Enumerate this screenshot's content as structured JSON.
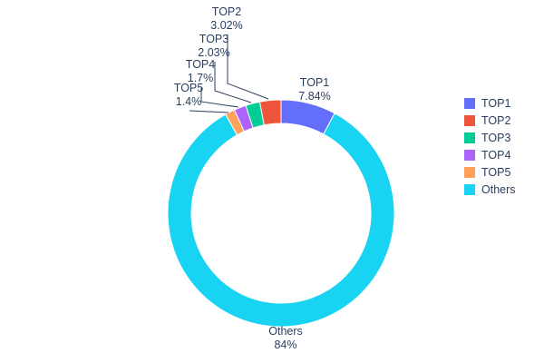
{
  "chart_data": {
    "type": "pie",
    "subtype": "donut",
    "hole_ratio": 0.79,
    "title": "",
    "total": 100,
    "slices": [
      {
        "label": "TOP1",
        "value": 7.84,
        "pct_label": "7.84%",
        "color": "#636efa"
      },
      {
        "label": "TOP2",
        "value": 3.02,
        "pct_label": "3.02%",
        "color": "#ef553b"
      },
      {
        "label": "TOP3",
        "value": 2.03,
        "pct_label": "2.03%",
        "color": "#00cc96"
      },
      {
        "label": "TOP4",
        "value": 1.7,
        "pct_label": "1.7%",
        "color": "#ab63fa"
      },
      {
        "label": "TOP5",
        "value": 1.4,
        "pct_label": "1.4%",
        "color": "#ffa15a"
      },
      {
        "label": "Others",
        "value": 84,
        "pct_label": "84%",
        "color": "#19d3f3"
      }
    ],
    "legend": {
      "position": "right-middle",
      "entries": [
        "TOP1",
        "TOP2",
        "TOP3",
        "TOP4",
        "TOP5",
        "Others"
      ]
    },
    "layout_hints": {
      "start_angle": "12-o'clock",
      "first_slice_direction": "clockwise",
      "remaining_slices": "stacked counterclockwise from 12-o'clock",
      "labels": "outside; small slices use leader lines stacked upper-left",
      "background": "#ffffff",
      "text_color": "#2a3f5f",
      "slice_border": "#ffffff"
    }
  }
}
